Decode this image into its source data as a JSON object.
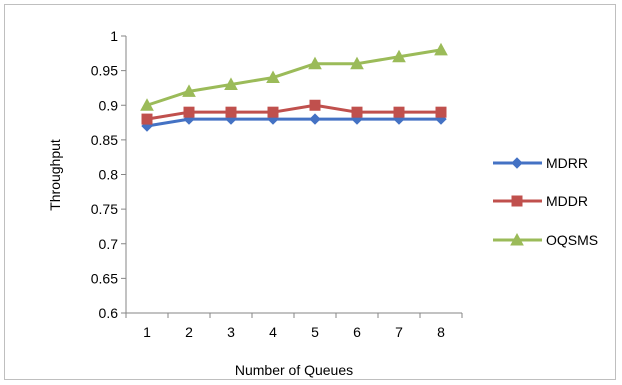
{
  "chart_data": {
    "type": "line",
    "title": "",
    "xlabel": "Number of Queues",
    "ylabel": "Throughput",
    "categories": [
      "1",
      "2",
      "3",
      "4",
      "5",
      "6",
      "7",
      "8"
    ],
    "ylim": [
      0.6,
      1
    ],
    "yticks": [
      "0.6",
      "0.65",
      "0.7",
      "0.75",
      "0.8",
      "0.85",
      "0.9",
      "0.95",
      "1"
    ],
    "grid": false,
    "legend_position": "right",
    "series": [
      {
        "name": "MDRR",
        "color": "#4472C4",
        "marker": "diamond",
        "values": [
          0.87,
          0.88,
          0.88,
          0.88,
          0.88,
          0.88,
          0.88,
          0.88
        ]
      },
      {
        "name": "MDDR",
        "color": "#C0504D",
        "marker": "square",
        "values": [
          0.88,
          0.89,
          0.89,
          0.89,
          0.9,
          0.89,
          0.89,
          0.89
        ]
      },
      {
        "name": "OQSMS",
        "color": "#9BBB59",
        "marker": "triangle",
        "values": [
          0.9,
          0.92,
          0.93,
          0.94,
          0.96,
          0.96,
          0.97,
          0.98
        ]
      }
    ]
  }
}
